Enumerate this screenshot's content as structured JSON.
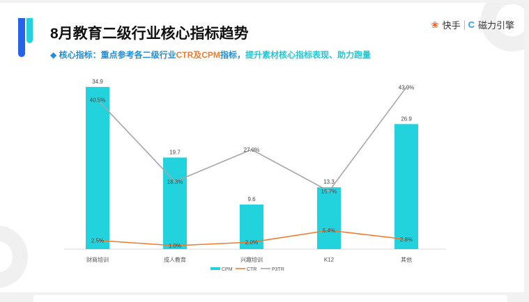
{
  "header": {
    "title": "8月教育二级行业核心指标趋势",
    "subtitle_prefix": "◆ 核心指标：重点参考各二级行业",
    "subtitle_highlight": "CTR及CPM",
    "subtitle_mid": "指标，",
    "subtitle_suffix": "提升素材核心指标表现、助力跑量",
    "logo_kuaishou": "快手",
    "logo_cili": "磁力引擎"
  },
  "chart_data": {
    "type": "bar+line",
    "categories": [
      "财商培训",
      "成人教育",
      "兴趣培训",
      "K12",
      "其他"
    ],
    "series": [
      {
        "name": "CPM",
        "type": "bar",
        "values": [
          34.9,
          19.7,
          9.6,
          13.3,
          26.9
        ],
        "labels": [
          "34.9",
          "19.7",
          "9.6",
          "13.3",
          "26.9"
        ],
        "color": "#22d3dd"
      },
      {
        "name": "CTR",
        "type": "line",
        "values": [
          2.5,
          1.0,
          2.0,
          5.4,
          2.8
        ],
        "labels": [
          "2.5%",
          "1.0%",
          "2.0%",
          "5.4%",
          "2.8%"
        ],
        "color": "#f07a2a"
      },
      {
        "name": "P3TR",
        "type": "line",
        "values": [
          40.5,
          18.3,
          27.0,
          15.7,
          43.9
        ],
        "labels": [
          "40.5%",
          "18.3%",
          "27.0%",
          "15.7%",
          "43.9%"
        ],
        "color": "#a6a6a6"
      }
    ],
    "legend": "bottom",
    "grid": false
  }
}
